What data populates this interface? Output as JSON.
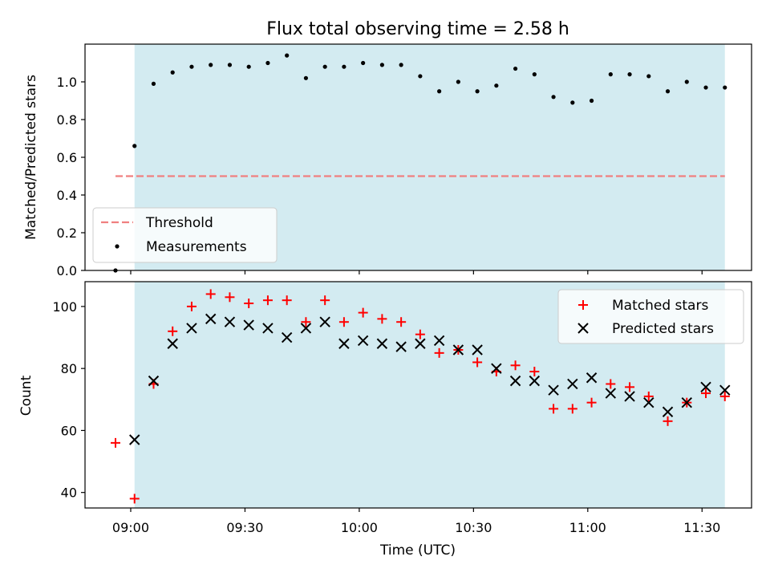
{
  "title": "Flux total observing time = 2.58 h",
  "xlabel": "Time (UTC)",
  "x_ticks": [
    "09:00",
    "09:30",
    "10:00",
    "10:30",
    "11:00",
    "11:30"
  ],
  "shaded_color": "#d3ebf1",
  "chart_data": [
    {
      "type": "scatter",
      "panel": "top",
      "ylabel": "Matched/Predicted stars",
      "ylim": [
        0,
        1.2
      ],
      "y_ticks": [
        "0.0",
        "0.2",
        "0.4",
        "0.6",
        "0.8",
        "1.0"
      ],
      "shaded_span": [
        "09:01",
        "11:36"
      ],
      "threshold": {
        "name": "Threshold",
        "value": 0.5,
        "x": [
          "08:56",
          "11:36"
        ],
        "color": "#f08080"
      },
      "legend": {
        "placement": "lower-left",
        "entries": [
          "Threshold",
          "Measurements"
        ]
      },
      "series": [
        {
          "name": "Measurements",
          "color": "#000000",
          "points": [
            [
              "08:56",
              0.0
            ],
            [
              "09:01",
              0.66
            ],
            [
              "09:06",
              0.99
            ],
            [
              "09:11",
              1.05
            ],
            [
              "09:16",
              1.08
            ],
            [
              "09:21",
              1.09
            ],
            [
              "09:26",
              1.09
            ],
            [
              "09:31",
              1.08
            ],
            [
              "09:36",
              1.1
            ],
            [
              "09:41",
              1.14
            ],
            [
              "09:46",
              1.02
            ],
            [
              "09:51",
              1.08
            ],
            [
              "09:56",
              1.08
            ],
            [
              "10:01",
              1.1
            ],
            [
              "10:06",
              1.09
            ],
            [
              "10:11",
              1.09
            ],
            [
              "10:16",
              1.03
            ],
            [
              "10:21",
              0.95
            ],
            [
              "10:26",
              1.0
            ],
            [
              "10:31",
              0.95
            ],
            [
              "10:36",
              0.98
            ],
            [
              "10:41",
              1.07
            ],
            [
              "10:46",
              1.04
            ],
            [
              "10:51",
              0.92
            ],
            [
              "10:56",
              0.89
            ],
            [
              "11:01",
              0.9
            ],
            [
              "11:06",
              1.04
            ],
            [
              "11:11",
              1.04
            ],
            [
              "11:16",
              1.03
            ],
            [
              "11:21",
              0.95
            ],
            [
              "11:26",
              1.0
            ],
            [
              "11:31",
              0.97
            ],
            [
              "11:36",
              0.97
            ]
          ]
        }
      ]
    },
    {
      "type": "scatter",
      "panel": "bottom",
      "ylabel": "Count",
      "ylim": [
        35,
        108
      ],
      "y_ticks": [
        "40",
        "60",
        "80",
        "100"
      ],
      "shaded_span": [
        "09:01",
        "11:36"
      ],
      "legend": {
        "placement": "top-right",
        "entries": [
          "Matched stars",
          "Predicted stars"
        ]
      },
      "series": [
        {
          "name": "Matched stars",
          "marker": "plus",
          "color": "#ff0000",
          "points": [
            [
              "08:56",
              56
            ],
            [
              "09:01",
              38
            ],
            [
              "09:06",
              75
            ],
            [
              "09:11",
              92
            ],
            [
              "09:16",
              100
            ],
            [
              "09:21",
              104
            ],
            [
              "09:26",
              103
            ],
            [
              "09:31",
              101
            ],
            [
              "09:36",
              102
            ],
            [
              "09:41",
              102
            ],
            [
              "09:46",
              95
            ],
            [
              "09:51",
              102
            ],
            [
              "09:56",
              95
            ],
            [
              "10:01",
              98
            ],
            [
              "10:06",
              96
            ],
            [
              "10:11",
              95
            ],
            [
              "10:16",
              91
            ],
            [
              "10:21",
              85
            ],
            [
              "10:26",
              86
            ],
            [
              "10:31",
              82
            ],
            [
              "10:36",
              79
            ],
            [
              "10:41",
              81
            ],
            [
              "10:46",
              79
            ],
            [
              "10:51",
              67
            ],
            [
              "10:56",
              67
            ],
            [
              "11:01",
              69
            ],
            [
              "11:06",
              75
            ],
            [
              "11:11",
              74
            ],
            [
              "11:16",
              71
            ],
            [
              "11:21",
              63
            ],
            [
              "11:26",
              69
            ],
            [
              "11:31",
              72
            ],
            [
              "11:36",
              71
            ]
          ]
        },
        {
          "name": "Predicted stars",
          "marker": "x",
          "color": "#000000",
          "points": [
            [
              "09:01",
              57
            ],
            [
              "09:06",
              76
            ],
            [
              "09:11",
              88
            ],
            [
              "09:16",
              93
            ],
            [
              "09:21",
              96
            ],
            [
              "09:26",
              95
            ],
            [
              "09:31",
              94
            ],
            [
              "09:36",
              93
            ],
            [
              "09:41",
              90
            ],
            [
              "09:46",
              93
            ],
            [
              "09:51",
              95
            ],
            [
              "09:56",
              88
            ],
            [
              "10:01",
              89
            ],
            [
              "10:06",
              88
            ],
            [
              "10:11",
              87
            ],
            [
              "10:16",
              88
            ],
            [
              "10:21",
              89
            ],
            [
              "10:26",
              86
            ],
            [
              "10:31",
              86
            ],
            [
              "10:36",
              80
            ],
            [
              "10:41",
              76
            ],
            [
              "10:46",
              76
            ],
            [
              "10:51",
              73
            ],
            [
              "10:56",
              75
            ],
            [
              "11:01",
              77
            ],
            [
              "11:06",
              72
            ],
            [
              "11:11",
              71
            ],
            [
              "11:16",
              69
            ],
            [
              "11:21",
              66
            ],
            [
              "11:26",
              69
            ],
            [
              "11:31",
              74
            ],
            [
              "11:36",
              73
            ]
          ]
        }
      ]
    }
  ]
}
